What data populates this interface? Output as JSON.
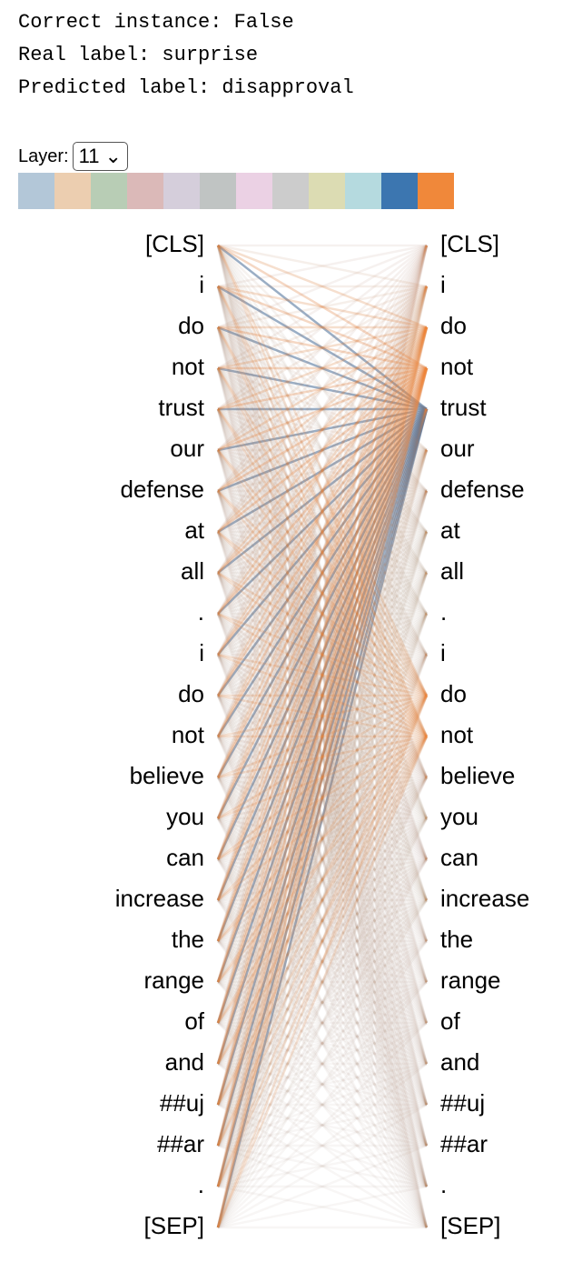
{
  "header": {
    "lines": [
      "Correct instance: False",
      "Real label: surprise",
      "Predicted label: disapproval"
    ]
  },
  "layer_label": "Layer:",
  "layer_value": "11",
  "heads": [
    {
      "color": "#b3c7d8"
    },
    {
      "color": "#ecceb0"
    },
    {
      "color": "#b8cdb5"
    },
    {
      "color": "#dbb9b8"
    },
    {
      "color": "#d5cedb"
    },
    {
      "color": "#c0c4c3"
    },
    {
      "color": "#ebd1e4"
    },
    {
      "color": "#cccccc"
    },
    {
      "color": "#dcdcb3"
    },
    {
      "color": "#b5dadf"
    },
    {
      "color": "#3c76b0",
      "weights": [
        0.04,
        0.03,
        0.03,
        0.04,
        0.9,
        0.03,
        0.03,
        0.03,
        0.03,
        0.03,
        0.03,
        0.03,
        0.03,
        0.05,
        0.03,
        0.04,
        0.03,
        0.02,
        0.02,
        0.02,
        0.02,
        0.02,
        0.02,
        0.02,
        0.02
      ]
    },
    {
      "color": "#f0883a",
      "weights": [
        0.08,
        0.12,
        0.35,
        0.45,
        0.12,
        0.08,
        0.06,
        0.05,
        0.05,
        0.05,
        0.06,
        0.3,
        0.3,
        0.08,
        0.05,
        0.05,
        0.05,
        0.04,
        0.04,
        0.04,
        0.04,
        0.03,
        0.03,
        0.03,
        0.03
      ]
    }
  ],
  "tokens": [
    "[CLS]",
    "i",
    "do",
    "not",
    "trust",
    "our",
    "defense",
    "at",
    "all",
    ".",
    "i",
    "do",
    "not",
    "believe",
    "you",
    "can",
    "increase",
    "the",
    "range",
    "of",
    "and",
    "##uj",
    "##ar",
    ".",
    "[SEP]"
  ]
}
